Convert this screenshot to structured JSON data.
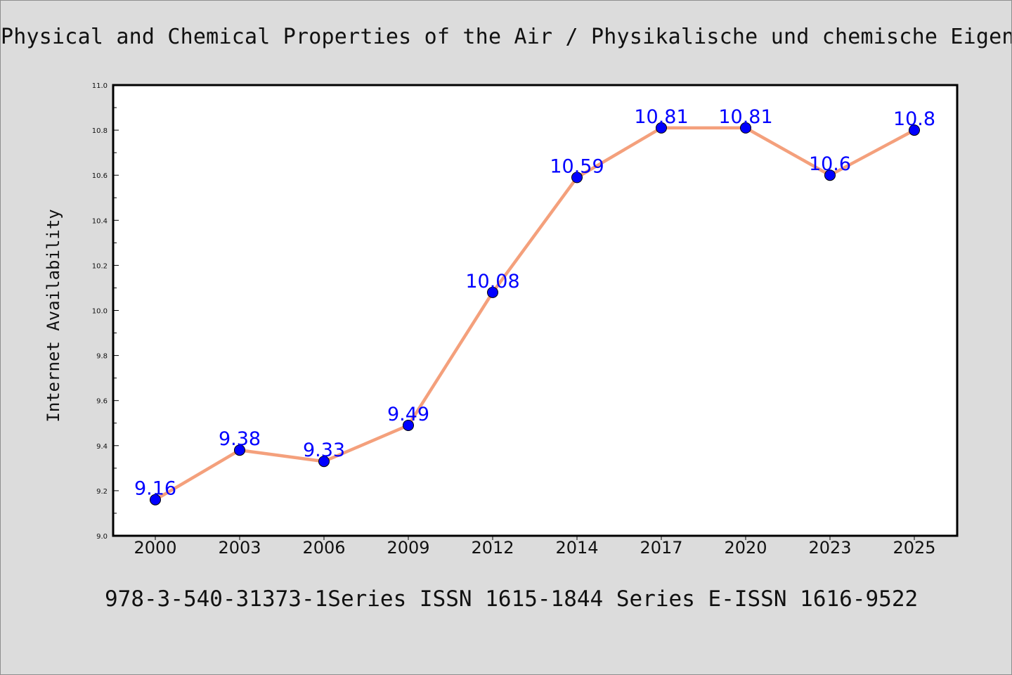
{
  "chart_data": {
    "type": "line",
    "title": "Physical and Chemical Properties of the Air / Physikalische und chemische Eigens",
    "xlabel": "",
    "ylabel": "Internet Availability",
    "footer": "978-3-540-31373-1Series ISSN 1615-1844 Series E-ISSN 1616-9522",
    "categories": [
      "2000",
      "2003",
      "2006",
      "2009",
      "2012",
      "2014",
      "2017",
      "2020",
      "2023",
      "2025"
    ],
    "series": [
      {
        "values": [
          9.16,
          9.38,
          9.33,
          9.49,
          10.08,
          10.59,
          10.81,
          10.81,
          10.6,
          10.8
        ],
        "labels": [
          "9.16",
          "9.38",
          "9.33",
          "9.49",
          "10.08",
          "10.59",
          "10.81",
          "10.81",
          "10.6",
          "10.8"
        ],
        "line_color": "#f4a07c",
        "marker_color": "#0000ff"
      }
    ],
    "ylim": [
      9.0,
      11.0
    ],
    "yticks": [
      "9.0",
      "9.2",
      "9.4",
      "9.6",
      "9.8",
      "10.0",
      "10.2",
      "10.4",
      "10.6",
      "10.8",
      "11.0"
    ],
    "grid": false,
    "legend": false
  }
}
